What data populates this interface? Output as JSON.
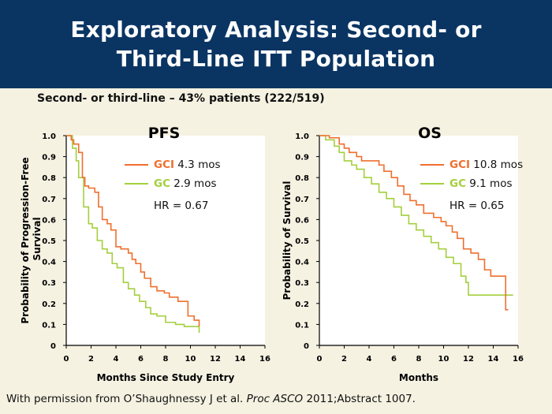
{
  "header": {
    "title_line1": "Exploratory Analysis: Second- or",
    "title_line2": "Third-Line ITT Population"
  },
  "subtitle": "Second- or third-line – 43% patients (222/519)",
  "footer": {
    "prefix": "With permission from O’Shaughnessy J et al. ",
    "journal": "Proc ASCO",
    "suffix": " 2011;Abstract 1007."
  },
  "colors": {
    "gci": "#ef6f2e",
    "gc": "#a4cf3e"
  },
  "chart_data": [
    {
      "type": "line",
      "title": "PFS",
      "xlabel": "Months Since Study Entry",
      "ylabel": "Probability of Progression-Free Survival",
      "xlim": [
        0,
        16
      ],
      "ylim": [
        0,
        1.0
      ],
      "xticks": [
        "0",
        "2",
        "4",
        "6",
        "8",
        "10",
        "12",
        "14",
        "16"
      ],
      "yticks": [
        "0",
        "0.1",
        "0.2",
        "0.3",
        "0.4",
        "0.5",
        "0.6",
        "0.7",
        "0.8",
        "0.9",
        "1.0"
      ],
      "legend": [
        {
          "name": "GCI",
          "value": "4.3 mos"
        },
        {
          "name": "GC",
          "value": "2.9 mos"
        }
      ],
      "hr": "HR = 0.67",
      "series": [
        {
          "name": "GCI",
          "x": [
            0,
            0.4,
            0.6,
            1.0,
            1.3,
            1.5,
            1.8,
            2.3,
            2.6,
            2.9,
            3.3,
            3.6,
            4.0,
            4.4,
            5.0,
            5.3,
            5.6,
            6.0,
            6.3,
            6.8,
            7.3,
            7.9,
            8.3,
            9.0,
            9.8,
            10.3,
            10.6,
            10.7
          ],
          "y": [
            1.0,
            0.98,
            0.96,
            0.92,
            0.8,
            0.76,
            0.75,
            0.73,
            0.66,
            0.6,
            0.58,
            0.55,
            0.47,
            0.46,
            0.44,
            0.41,
            0.39,
            0.35,
            0.32,
            0.28,
            0.26,
            0.25,
            0.23,
            0.21,
            0.14,
            0.12,
            0.12,
            0.09
          ]
        },
        {
          "name": "GC",
          "x": [
            0,
            0.5,
            0.8,
            1.0,
            1.4,
            1.8,
            2.1,
            2.5,
            2.9,
            3.3,
            3.7,
            4.1,
            4.6,
            5.0,
            5.5,
            5.9,
            6.4,
            6.8,
            7.3,
            8.0,
            8.8,
            9.5,
            10.2,
            10.6,
            10.7
          ],
          "y": [
            1.0,
            0.94,
            0.88,
            0.8,
            0.66,
            0.58,
            0.56,
            0.5,
            0.46,
            0.44,
            0.39,
            0.37,
            0.3,
            0.27,
            0.24,
            0.21,
            0.18,
            0.15,
            0.14,
            0.11,
            0.1,
            0.09,
            0.09,
            0.09,
            0.06
          ]
        }
      ]
    },
    {
      "type": "line",
      "title": "OS",
      "xlabel": "Months",
      "ylabel": "Probability of Survival",
      "xlim": [
        0,
        16
      ],
      "ylim": [
        0,
        1.0
      ],
      "xticks": [
        "0",
        "2",
        "4",
        "6",
        "8",
        "10",
        "12",
        "14",
        "16"
      ],
      "yticks": [
        "0",
        "0.1",
        "0.2",
        "0.3",
        "0.4",
        "0.5",
        "0.6",
        "0.7",
        "0.8",
        "0.9",
        "1.0"
      ],
      "legend": [
        {
          "name": "GCI",
          "value": "10.8 mos"
        },
        {
          "name": "GC",
          "value": "9.1 mos"
        }
      ],
      "hr": "HR = 0.65",
      "series": [
        {
          "name": "GCI",
          "x": [
            0,
            0.8,
            1.6,
            2.0,
            2.4,
            3.0,
            3.4,
            4.8,
            5.2,
            5.8,
            6.3,
            6.8,
            7.3,
            7.8,
            8.4,
            9.2,
            9.8,
            10.2,
            10.7,
            11.1,
            11.6,
            12.2,
            12.8,
            13.3,
            13.8,
            14.9,
            15.0,
            15.2
          ],
          "y": [
            1.0,
            0.99,
            0.96,
            0.94,
            0.92,
            0.9,
            0.88,
            0.86,
            0.83,
            0.8,
            0.76,
            0.72,
            0.69,
            0.67,
            0.63,
            0.61,
            0.59,
            0.57,
            0.54,
            0.51,
            0.46,
            0.44,
            0.41,
            0.36,
            0.33,
            0.33,
            0.17,
            0.17
          ]
        },
        {
          "name": "GC",
          "x": [
            0,
            0.5,
            1.2,
            1.6,
            2.0,
            2.6,
            3.0,
            3.6,
            4.2,
            4.8,
            5.4,
            6.0,
            6.6,
            7.2,
            7.8,
            8.4,
            9.0,
            9.6,
            10.2,
            10.8,
            11.4,
            11.8,
            12.0,
            13.5,
            15.6
          ],
          "y": [
            1.0,
            0.98,
            0.95,
            0.92,
            0.88,
            0.86,
            0.84,
            0.8,
            0.77,
            0.73,
            0.7,
            0.66,
            0.62,
            0.58,
            0.55,
            0.52,
            0.49,
            0.46,
            0.42,
            0.39,
            0.33,
            0.3,
            0.24,
            0.24,
            0.24
          ]
        }
      ]
    }
  ]
}
